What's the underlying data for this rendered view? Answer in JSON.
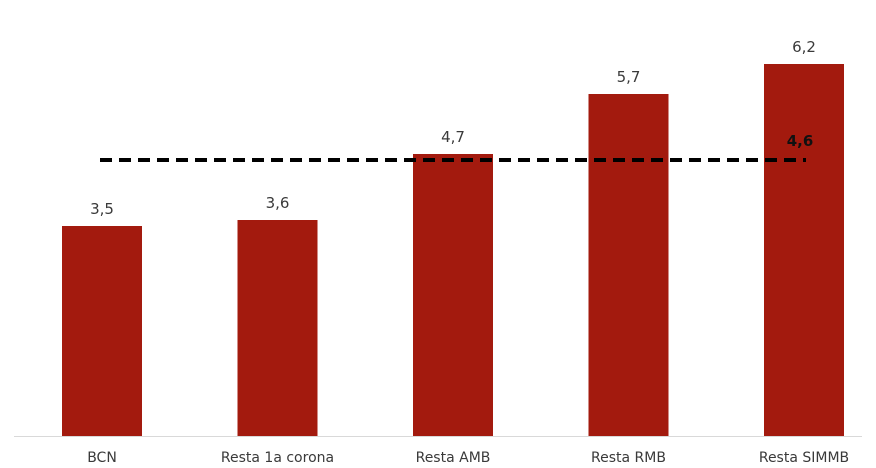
{
  "chart_data": {
    "type": "bar",
    "title": "",
    "xlabel": "",
    "ylabel": "",
    "categories": [
      "BCN",
      "Resta 1a corona",
      "Resta AMB",
      "Resta RMB",
      "Resta SIMMB"
    ],
    "values": [
      3.5,
      3.6,
      4.7,
      5.7,
      6.2
    ],
    "value_labels": [
      "3,5",
      "3,6",
      "4,7",
      "5,7",
      "6,2"
    ],
    "ylim": [
      0,
      7
    ],
    "grid": false,
    "reference_line": {
      "value": 4.6,
      "label": "4,6",
      "style": "dashed",
      "color": "#000000"
    },
    "colors": {
      "bar": "#A31A0E",
      "axis": "#d9d9d9"
    }
  }
}
